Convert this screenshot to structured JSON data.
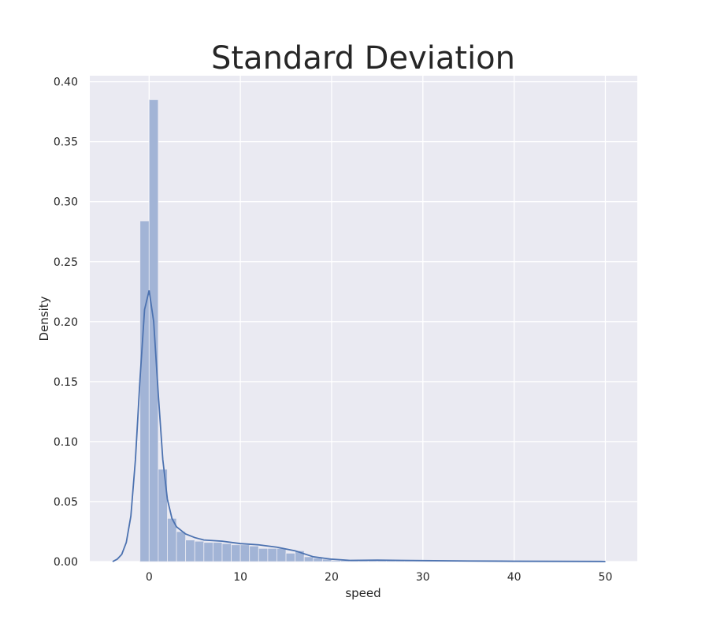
{
  "chart_data": {
    "type": "bar",
    "title": "Standard Deviation",
    "xlabel": "speed",
    "ylabel": "Density",
    "xlim": [
      -6.5,
      53.5
    ],
    "ylim": [
      0,
      0.405
    ],
    "xticks": [
      0,
      10,
      20,
      30,
      40,
      50
    ],
    "xtick_labels": [
      "0",
      "10",
      "20",
      "30",
      "40",
      "50"
    ],
    "yticks": [
      0,
      0.05,
      0.1,
      0.15,
      0.2,
      0.25,
      0.3,
      0.35,
      0.4
    ],
    "ytick_labels": [
      "0.00",
      "0.05",
      "0.10",
      "0.15",
      "0.20",
      "0.25",
      "0.30",
      "0.35",
      "0.40"
    ],
    "grid": true,
    "bin_width": 1.0,
    "bin_start": -1.0,
    "histogram": [
      0.284,
      0.385,
      0.077,
      0.036,
      0.025,
      0.018,
      0.017,
      0.016,
      0.016,
      0.015,
      0.014,
      0.014,
      0.013,
      0.011,
      0.011,
      0.011,
      0.007,
      0.009,
      0.004,
      0.003,
      0.002,
      0.001,
      0.001,
      0.001,
      0.001,
      0.001,
      0.001,
      0.001,
      0.001,
      0.001,
      0.001,
      0.001,
      0.0005,
      0.0005,
      0.0005,
      0.0005,
      0.0005,
      0.0005,
      0.0005,
      0.0005,
      0.0005,
      0.0005,
      0.0005,
      0.0005,
      0.0005,
      0.0005,
      0.0005,
      0.0005,
      0.0005,
      0.0005,
      0.0005
    ],
    "kde": {
      "x": [
        -4,
        -3.5,
        -3,
        -2.5,
        -2,
        -1.5,
        -1,
        -0.5,
        0,
        0.5,
        1,
        1.5,
        2,
        2.5,
        3,
        4,
        5,
        6,
        8,
        10,
        12,
        14,
        16,
        18,
        20,
        22,
        25,
        30,
        35,
        40,
        45,
        50
      ],
      "y": [
        0.0,
        0.002,
        0.006,
        0.016,
        0.038,
        0.085,
        0.152,
        0.21,
        0.226,
        0.2,
        0.14,
        0.085,
        0.052,
        0.036,
        0.029,
        0.023,
        0.02,
        0.018,
        0.017,
        0.015,
        0.014,
        0.012,
        0.009,
        0.004,
        0.002,
        0.001,
        0.0012,
        0.0008,
        0.0005,
        0.0003,
        0.0002,
        0.0001
      ]
    },
    "colors": {
      "background": "#eaeaf2",
      "grid": "#ffffff",
      "bar_fill": "#a2b4d6",
      "bar_edge": "#eaeaf2",
      "kde_line": "#4c72b0",
      "text": "#262626"
    }
  }
}
